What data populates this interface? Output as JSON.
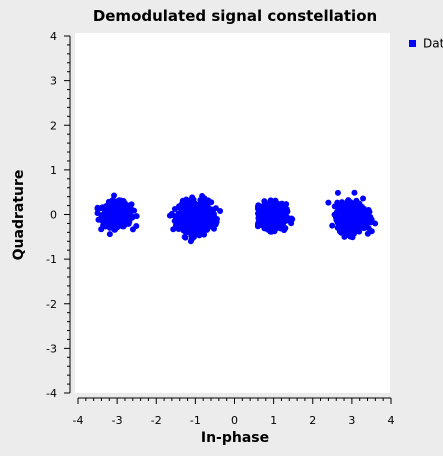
{
  "chart_data": {
    "type": "scatter",
    "title": "Demodulated signal constellation",
    "xlabel": "In-phase",
    "ylabel": "Quadrature",
    "xlim": [
      -4,
      4
    ],
    "ylim": [
      -4,
      4
    ],
    "xticks": [
      -4,
      -3,
      -2,
      -1,
      0,
      1,
      2,
      3,
      4
    ],
    "yticks": [
      -4,
      -3,
      -2,
      -1,
      0,
      1,
      2,
      3,
      4
    ],
    "grid": false,
    "legend_position": "top-right, outside plot",
    "series": [
      {
        "name": "Dat",
        "color": "#0000ff",
        "marker": "circle",
        "clusters": [
          {
            "center": [
              -3.0,
              0.0
            ],
            "spread_x": 0.18,
            "spread_y": 0.13,
            "points": 500,
            "x_range": [
              -3.5,
              -2.45
            ],
            "y_range": [
              -0.45,
              0.62
            ]
          },
          {
            "center": [
              -1.0,
              -0.05
            ],
            "spread_x": 0.2,
            "spread_y": 0.16,
            "points": 800,
            "x_range": [
              -1.65,
              -0.35
            ],
            "y_range": [
              -0.6,
              0.55
            ]
          },
          {
            "center": [
              1.0,
              -0.05
            ],
            "spread_x": 0.16,
            "spread_y": 0.14,
            "points": 450,
            "x_range": [
              0.6,
              1.5
            ],
            "y_range": [
              -0.58,
              0.45
            ]
          },
          {
            "center": [
              3.0,
              -0.05
            ],
            "spread_x": 0.18,
            "spread_y": 0.15,
            "points": 700,
            "x_range": [
              2.4,
              3.6
            ],
            "y_range": [
              -0.6,
              0.62
            ]
          }
        ]
      }
    ]
  }
}
